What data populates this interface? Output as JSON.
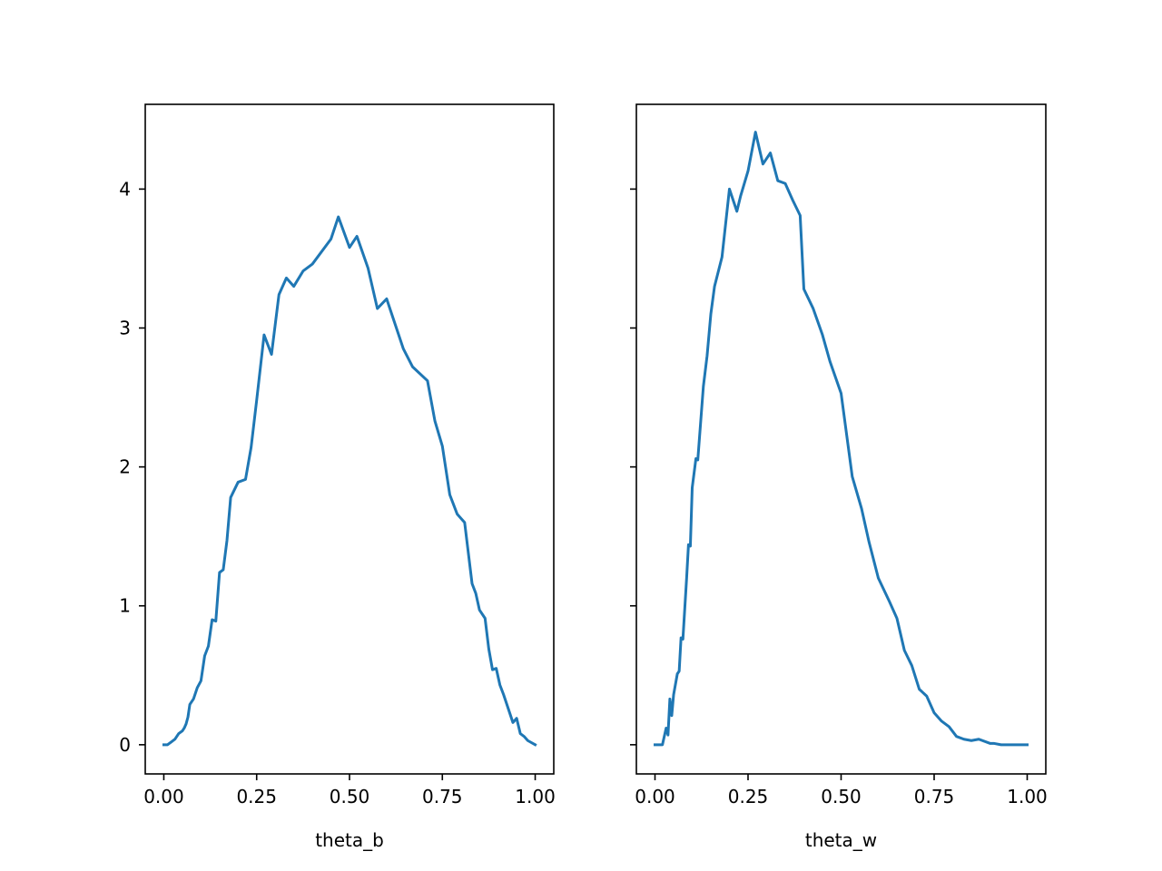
{
  "chart_data": [
    {
      "type": "line",
      "xlabel": "theta_b",
      "ylabel": "",
      "xlim": [
        -0.05,
        1.05
      ],
      "ylim": [
        -0.21,
        4.61
      ],
      "xticks": [
        0.0,
        0.25,
        0.5,
        0.75,
        1.0
      ],
      "xtick_labels": [
        "0.00",
        "0.25",
        "0.50",
        "0.75",
        "1.00"
      ],
      "yticks": [
        0,
        1,
        2,
        3,
        4
      ],
      "ytick_labels": [
        "0",
        "1",
        "2",
        "3",
        "4"
      ],
      "show_ytick_labels": true,
      "grid": false,
      "series": [
        {
          "color": "#1f77b4",
          "x": [
            0.0,
            0.01,
            0.02,
            0.03,
            0.04,
            0.05,
            0.055,
            0.06,
            0.065,
            0.07,
            0.08,
            0.09,
            0.1,
            0.11,
            0.12,
            0.13,
            0.14,
            0.15,
            0.16,
            0.17,
            0.18,
            0.2,
            0.22,
            0.235,
            0.25,
            0.27,
            0.29,
            0.31,
            0.33,
            0.35,
            0.375,
            0.4,
            0.45,
            0.47,
            0.5,
            0.52,
            0.55,
            0.575,
            0.6,
            0.62,
            0.645,
            0.67,
            0.71,
            0.73,
            0.75,
            0.77,
            0.79,
            0.81,
            0.83,
            0.84,
            0.85,
            0.865,
            0.875,
            0.885,
            0.895,
            0.905,
            0.915,
            0.93,
            0.94,
            0.95,
            0.96,
            0.97,
            0.98,
            1.0
          ],
          "y": [
            0.0,
            0.0,
            0.02,
            0.04,
            0.08,
            0.1,
            0.12,
            0.15,
            0.2,
            0.29,
            0.33,
            0.41,
            0.46,
            0.64,
            0.71,
            0.9,
            0.89,
            1.24,
            1.26,
            1.47,
            1.78,
            1.89,
            1.91,
            2.14,
            2.48,
            2.95,
            2.81,
            3.24,
            3.36,
            3.3,
            3.41,
            3.46,
            3.64,
            3.8,
            3.58,
            3.66,
            3.43,
            3.14,
            3.21,
            3.05,
            2.85,
            2.72,
            2.62,
            2.33,
            2.15,
            1.8,
            1.66,
            1.6,
            1.16,
            1.09,
            0.97,
            0.91,
            0.69,
            0.54,
            0.55,
            0.43,
            0.36,
            0.24,
            0.16,
            0.19,
            0.08,
            0.06,
            0.03,
            0.0
          ]
        }
      ]
    },
    {
      "type": "line",
      "xlabel": "theta_w",
      "ylabel": "",
      "xlim": [
        -0.05,
        1.05
      ],
      "ylim": [
        -0.21,
        4.61
      ],
      "xticks": [
        0.0,
        0.25,
        0.5,
        0.75,
        1.0
      ],
      "xtick_labels": [
        "0.00",
        "0.25",
        "0.50",
        "0.75",
        "1.00"
      ],
      "yticks": [
        0,
        1,
        2,
        3,
        4
      ],
      "ytick_labels": [
        "0",
        "1",
        "2",
        "3",
        "4"
      ],
      "show_ytick_labels": false,
      "grid": false,
      "series": [
        {
          "color": "#1f77b4",
          "x": [
            0.0,
            0.02,
            0.03,
            0.035,
            0.04,
            0.045,
            0.05,
            0.06,
            0.065,
            0.07,
            0.075,
            0.085,
            0.09,
            0.095,
            0.1,
            0.11,
            0.115,
            0.13,
            0.14,
            0.15,
            0.16,
            0.18,
            0.2,
            0.22,
            0.23,
            0.25,
            0.27,
            0.29,
            0.31,
            0.33,
            0.35,
            0.37,
            0.39,
            0.4,
            0.425,
            0.45,
            0.47,
            0.5,
            0.53,
            0.555,
            0.575,
            0.6,
            0.63,
            0.65,
            0.67,
            0.69,
            0.71,
            0.73,
            0.75,
            0.77,
            0.79,
            0.81,
            0.83,
            0.85,
            0.87,
            0.9,
            0.91,
            0.93,
            0.95,
            1.0
          ],
          "y": [
            0.0,
            0.0,
            0.12,
            0.07,
            0.33,
            0.21,
            0.36,
            0.51,
            0.53,
            0.77,
            0.76,
            1.2,
            1.44,
            1.43,
            1.85,
            2.06,
            2.05,
            2.58,
            2.8,
            3.1,
            3.3,
            3.51,
            4.0,
            3.84,
            3.95,
            4.13,
            4.41,
            4.18,
            4.26,
            4.06,
            4.04,
            3.92,
            3.81,
            3.28,
            3.14,
            2.95,
            2.76,
            2.53,
            1.93,
            1.7,
            1.46,
            1.2,
            1.03,
            0.91,
            0.68,
            0.57,
            0.4,
            0.35,
            0.23,
            0.17,
            0.13,
            0.06,
            0.04,
            0.03,
            0.04,
            0.01,
            0.01,
            0.0,
            0.0,
            0.0
          ]
        }
      ]
    }
  ]
}
